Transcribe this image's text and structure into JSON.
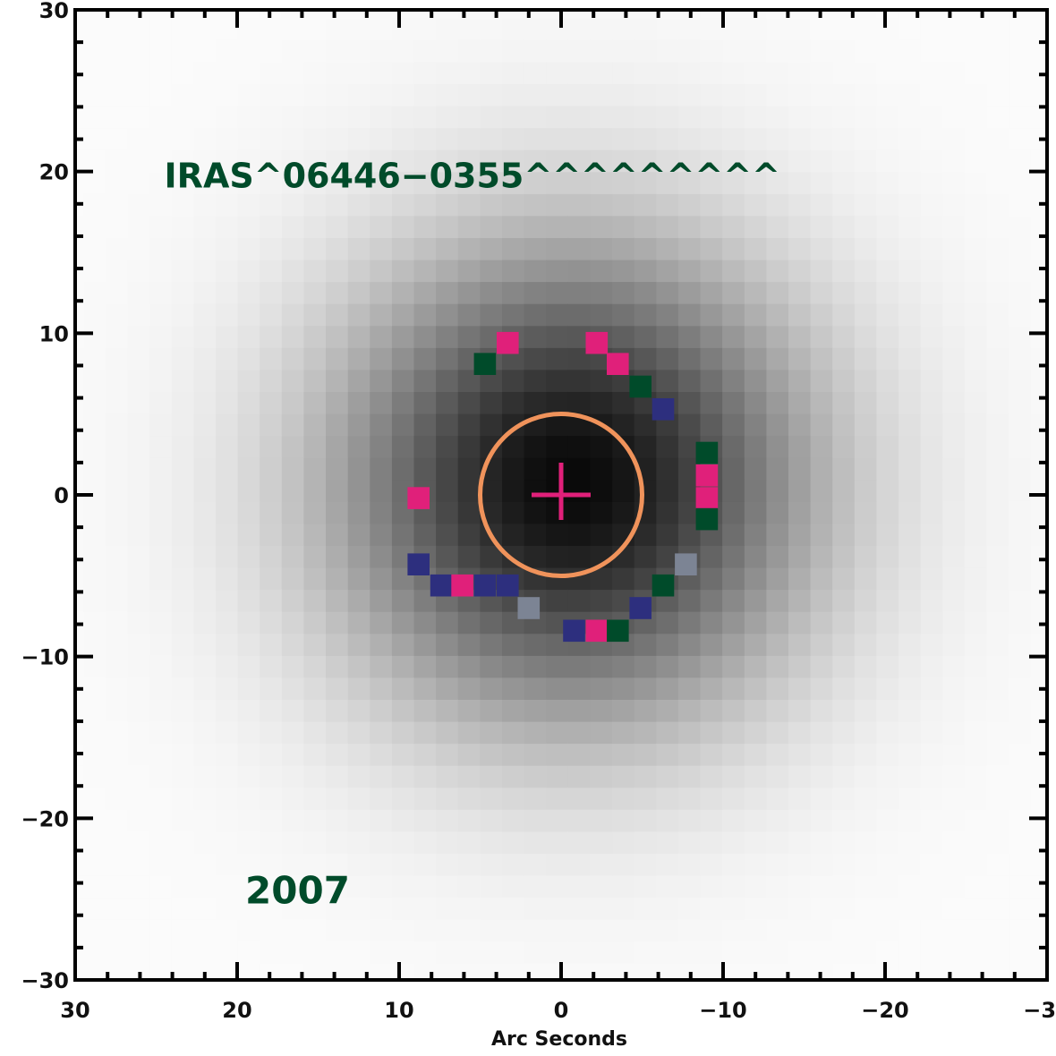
{
  "chart_data": {
    "type": "heatmap",
    "title": "",
    "xlabel": "Arc Seconds",
    "ylabel": "",
    "xlim": [
      30,
      -30
    ],
    "ylim": [
      -30,
      30
    ],
    "x_ticks": [
      30,
      20,
      10,
      0,
      -10,
      -20,
      -30
    ],
    "x_tick_labels": [
      "30",
      "20",
      "10",
      "0",
      "−10",
      "−20",
      "−30"
    ],
    "y_ticks": [
      30,
      20,
      10,
      0,
      -10,
      -20,
      -30
    ],
    "y_tick_labels": [
      "30",
      "20",
      "10",
      "0",
      "−10",
      "−20",
      "−30"
    ],
    "image": {
      "description_units": "arcsec",
      "grid_step": 1.36,
      "peak_center": [
        -0.6,
        0.8
      ],
      "gaussian_sigma": 7.5,
      "background_level": 0.015
    },
    "annotations": [
      {
        "text": "IRAS^06446−0355^^^^^^^^^",
        "x": 24.5,
        "y": 19.0,
        "color": "#004b2a"
      },
      {
        "text": "2007",
        "x": 19.5,
        "y": -24.5,
        "color": "#004b2a"
      }
    ],
    "marker": {
      "type": "cross",
      "x": 0,
      "y": 0,
      "color": "#e0207a"
    },
    "aperture_circle": {
      "center": [
        0,
        0
      ],
      "radius": 5.0,
      "color": "#f0935b"
    },
    "highlighted_pixels": [
      {
        "x": 3.3,
        "y": 9.4,
        "color": "#e0207a"
      },
      {
        "x": -2.2,
        "y": 9.4,
        "color": "#e0207a"
      },
      {
        "x": 4.7,
        "y": 8.1,
        "color": "#004b2a"
      },
      {
        "x": -3.5,
        "y": 8.1,
        "color": "#e0207a"
      },
      {
        "x": -4.9,
        "y": 6.7,
        "color": "#004b2a"
      },
      {
        "x": -6.3,
        "y": 5.3,
        "color": "#2d2f7e"
      },
      {
        "x": -9.0,
        "y": 2.6,
        "color": "#004b2a"
      },
      {
        "x": -9.0,
        "y": 1.2,
        "color": "#e0207a"
      },
      {
        "x": -9.0,
        "y": -0.2,
        "color": "#e0207a"
      },
      {
        "x": -9.0,
        "y": -1.5,
        "color": "#004b2a"
      },
      {
        "x": 8.8,
        "y": -0.2,
        "color": "#e0207a"
      },
      {
        "x": 8.8,
        "y": -4.3,
        "color": "#2d2f7e"
      },
      {
        "x": -7.7,
        "y": -4.3,
        "color": "#7c8494"
      },
      {
        "x": 7.4,
        "y": -5.6,
        "color": "#2d2f7e"
      },
      {
        "x": 6.1,
        "y": -5.6,
        "color": "#e0207a"
      },
      {
        "x": 4.7,
        "y": -5.6,
        "color": "#2d2f7e"
      },
      {
        "x": 3.3,
        "y": -5.6,
        "color": "#2d2f7e"
      },
      {
        "x": -6.3,
        "y": -5.6,
        "color": "#004b2a"
      },
      {
        "x": 2.0,
        "y": -7.0,
        "color": "#7c8494"
      },
      {
        "x": -4.9,
        "y": -7.0,
        "color": "#2d2f7e"
      },
      {
        "x": -0.8,
        "y": -8.4,
        "color": "#2d2f7e"
      },
      {
        "x": -2.2,
        "y": -8.4,
        "color": "#e0207a"
      },
      {
        "x": -3.5,
        "y": -8.4,
        "color": "#004b2a"
      }
    ]
  }
}
